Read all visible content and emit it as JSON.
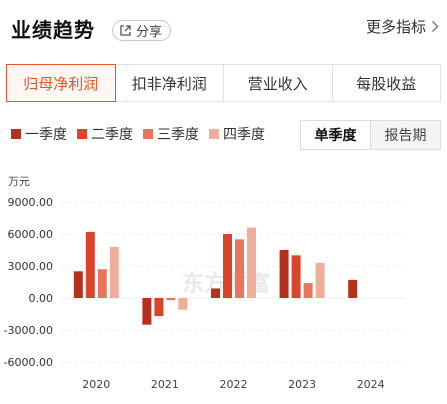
{
  "header": {
    "title": "业绩趋势",
    "share_label": "分享",
    "more_label": "更多指标"
  },
  "tabs": [
    {
      "label": "归母净利润",
      "active": true
    },
    {
      "label": "扣非净利润",
      "active": false
    },
    {
      "label": "营业收入",
      "active": false
    },
    {
      "label": "每股收益",
      "active": false
    }
  ],
  "period_toggle": [
    {
      "label": "单季度",
      "active": true
    },
    {
      "label": "报告期",
      "active": false
    }
  ],
  "watermark": "东方财富",
  "chart_data": {
    "type": "bar",
    "unit_label": "万元",
    "categories": [
      "2020",
      "2021",
      "2022",
      "2023",
      "2024"
    ],
    "series": [
      {
        "name": "一季度",
        "color": "#b5301f",
        "values": [
          2500,
          -2500,
          900,
          4500,
          1700
        ]
      },
      {
        "name": "二季度",
        "color": "#d9452b",
        "values": [
          6200,
          -1700,
          6000,
          4000,
          null
        ]
      },
      {
        "name": "三季度",
        "color": "#e8765f",
        "values": [
          2700,
          -200,
          5500,
          1400,
          null
        ]
      },
      {
        "name": "四季度",
        "color": "#efad9c",
        "values": [
          4800,
          -1100,
          6600,
          3300,
          null
        ]
      }
    ],
    "y_ticks": [
      "9000.00",
      "6000.00",
      "3000.00",
      "0.00",
      "-3000.00",
      "-6000.00"
    ],
    "ylim": [
      -6000,
      9000
    ],
    "grid": true,
    "legend_position": "top-left"
  }
}
